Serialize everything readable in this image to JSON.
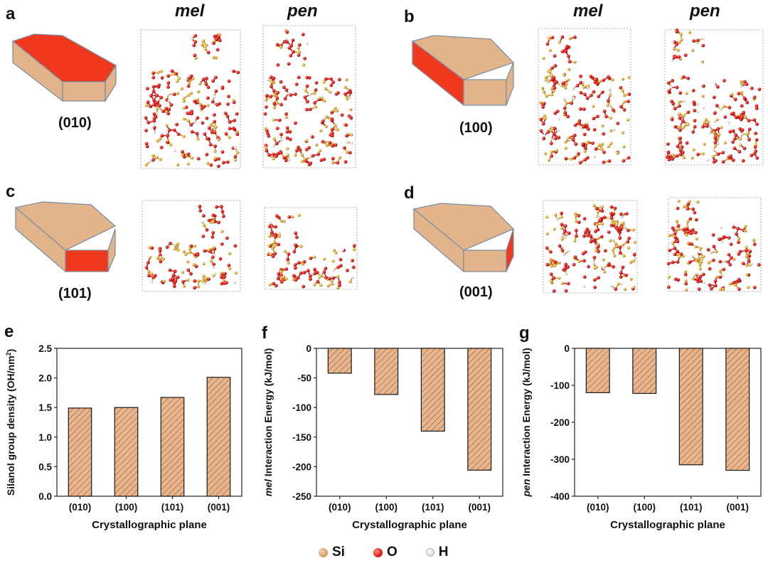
{
  "top_panels": [
    {
      "letter": "a",
      "plane": "(010)",
      "col1": "mel",
      "col2": "pen",
      "face": "top"
    },
    {
      "letter": "b",
      "plane": "(100)",
      "col1": "mel",
      "col2": "pen",
      "face": "front"
    },
    {
      "letter": "c",
      "plane": "(101)",
      "col1": "",
      "col2": "",
      "face": "right"
    },
    {
      "letter": "d",
      "plane": "(001)",
      "col1": "",
      "col2": "",
      "face": "end"
    }
  ],
  "colors": {
    "bar_fill": "#e8b58c",
    "hatch": "#8a5a36",
    "face_red": "#f0381f",
    "crystal": "#e3b48a",
    "crystal_edge": "#7d8fa3",
    "oxygen": "#e21a1a",
    "silicon": "#e0b040",
    "hydrogen": "#e8e8e8"
  },
  "legend": [
    {
      "symbol": "Si",
      "color": "#d9a36e"
    },
    {
      "symbol": "O",
      "color": "#e21a1a"
    },
    {
      "symbol": "H",
      "color": "#e4e4e4"
    }
  ],
  "chart_data": [
    {
      "letter": "e",
      "type": "bar",
      "title": "",
      "categories": [
        "(010)",
        "(100)",
        "(101)",
        "(001)"
      ],
      "values": [
        1.49,
        1.5,
        1.67,
        2.01
      ],
      "xlabel": "Crystallographic plane",
      "ylabel_prefix": "",
      "ylabel": "Silanol group density (OH/nm",
      "ylabel_sup": "2",
      "ylabel_suffix": ")",
      "ylim": [
        0,
        2.5
      ],
      "yticks": [
        "0.0",
        "0.5",
        "1.0",
        "1.5",
        "2.0",
        "2.5"
      ],
      "ytick_values": [
        0,
        0.5,
        1.0,
        1.5,
        2.0,
        2.5
      ]
    },
    {
      "letter": "f",
      "type": "bar",
      "title": "",
      "categories": [
        "(010)",
        "(100)",
        "(101)",
        "(001)"
      ],
      "values": [
        -42,
        -78,
        -140,
        -206
      ],
      "xlabel": "Crystallographic plane",
      "ylabel_prefix": "mel",
      "ylabel": " Interaction Energy (kJ/mol)",
      "ylabel_sup": "",
      "ylabel_suffix": "",
      "ylim": [
        -250,
        0
      ],
      "yticks": [
        "0",
        "-50",
        "-100",
        "-150",
        "-200",
        "-250"
      ],
      "ytick_values": [
        0,
        -50,
        -100,
        -150,
        -200,
        -250
      ]
    },
    {
      "letter": "g",
      "type": "bar",
      "title": "",
      "categories": [
        "(010)",
        "(100)",
        "(101)",
        "(001)"
      ],
      "values": [
        -120,
        -122,
        -315,
        -330
      ],
      "xlabel": "Crystallographic plane",
      "ylabel_prefix": "pen",
      "ylabel": " Interaction Energy (kJ/mol)",
      "ylabel_sup": "",
      "ylabel_suffix": "",
      "ylim": [
        -400,
        0
      ],
      "yticks": [
        "0",
        "-100",
        "-200",
        "-300",
        "-400"
      ],
      "ytick_values": [
        0,
        -100,
        -200,
        -300,
        -400
      ]
    }
  ]
}
